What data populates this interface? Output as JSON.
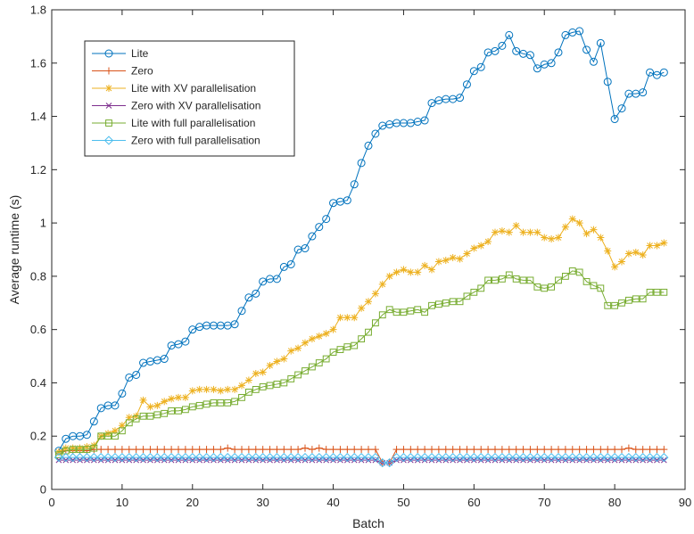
{
  "chart_data": {
    "type": "line",
    "xlabel": "Batch",
    "ylabel": "Average runtime (s)",
    "xlim": [
      0,
      90
    ],
    "ylim": [
      0,
      1.8
    ],
    "xticks": [
      0,
      10,
      20,
      30,
      40,
      50,
      60,
      70,
      80,
      90
    ],
    "yticks": [
      0,
      0.2,
      0.4,
      0.6,
      0.8,
      1,
      1.2,
      1.4,
      1.6,
      1.8
    ],
    "xtick_labels": [
      "0",
      "10",
      "20",
      "30",
      "40",
      "50",
      "60",
      "70",
      "80",
      "90"
    ],
    "ytick_labels": [
      "0",
      "0.2",
      "0.4",
      "0.6",
      "0.8",
      "1",
      "1.2",
      "1.4",
      "1.6",
      "1.8"
    ],
    "grid": false,
    "legend_position": "top-left",
    "x": [
      1,
      2,
      3,
      4,
      5,
      6,
      7,
      8,
      9,
      10,
      11,
      12,
      13,
      14,
      15,
      16,
      17,
      18,
      19,
      20,
      21,
      22,
      23,
      24,
      25,
      26,
      27,
      28,
      29,
      30,
      31,
      32,
      33,
      34,
      35,
      36,
      37,
      38,
      39,
      40,
      41,
      42,
      43,
      44,
      45,
      46,
      47,
      48,
      49,
      50,
      51,
      52,
      53,
      54,
      55,
      56,
      57,
      58,
      59,
      60,
      61,
      62,
      63,
      64,
      65,
      66,
      67,
      68,
      69,
      70,
      71,
      72,
      73,
      74,
      75,
      76,
      77,
      78,
      79,
      80,
      81,
      82,
      83,
      84,
      85,
      86,
      87
    ],
    "series": [
      {
        "name": "Lite",
        "color": "#0072BD",
        "marker": "circle",
        "values": [
          0.145,
          0.19,
          0.2,
          0.2,
          0.205,
          0.255,
          0.305,
          0.315,
          0.315,
          0.36,
          0.42,
          0.43,
          0.475,
          0.48,
          0.485,
          0.49,
          0.54,
          0.545,
          0.555,
          0.6,
          0.61,
          0.615,
          0.615,
          0.615,
          0.615,
          0.62,
          0.67,
          0.72,
          0.735,
          0.78,
          0.79,
          0.79,
          0.835,
          0.845,
          0.9,
          0.905,
          0.95,
          0.985,
          1.015,
          1.075,
          1.08,
          1.085,
          1.145,
          1.225,
          1.29,
          1.335,
          1.365,
          1.37,
          1.375,
          1.375,
          1.375,
          1.38,
          1.385,
          1.45,
          1.46,
          1.465,
          1.465,
          1.47,
          1.52,
          1.57,
          1.585,
          1.64,
          1.645,
          1.665,
          1.705,
          1.645,
          1.635,
          1.63,
          1.58,
          1.595,
          1.6,
          1.64,
          1.705,
          1.715,
          1.72,
          1.65,
          1.605,
          1.675,
          1.53,
          1.39,
          1.43,
          1.485,
          1.485,
          1.49,
          1.565,
          1.555,
          1.565
        ]
      },
      {
        "name": "Zero",
        "color": "#D95319",
        "marker": "plus",
        "values": [
          0.14,
          0.145,
          0.145,
          0.145,
          0.145,
          0.15,
          0.15,
          0.15,
          0.15,
          0.15,
          0.15,
          0.15,
          0.15,
          0.15,
          0.15,
          0.15,
          0.15,
          0.15,
          0.15,
          0.15,
          0.15,
          0.15,
          0.15,
          0.15,
          0.155,
          0.15,
          0.15,
          0.15,
          0.15,
          0.15,
          0.15,
          0.15,
          0.15,
          0.15,
          0.15,
          0.155,
          0.15,
          0.155,
          0.15,
          0.15,
          0.15,
          0.15,
          0.15,
          0.15,
          0.15,
          0.15,
          0.1,
          0.1,
          0.15,
          0.15,
          0.15,
          0.15,
          0.15,
          0.15,
          0.15,
          0.15,
          0.15,
          0.15,
          0.15,
          0.15,
          0.15,
          0.15,
          0.15,
          0.15,
          0.15,
          0.15,
          0.15,
          0.15,
          0.15,
          0.15,
          0.15,
          0.15,
          0.15,
          0.15,
          0.15,
          0.15,
          0.15,
          0.15,
          0.15,
          0.15,
          0.15,
          0.155,
          0.15,
          0.15,
          0.15,
          0.15,
          0.15
        ]
      },
      {
        "name": "Lite with XV parallelisation",
        "color": "#EDB120",
        "marker": "asterisk",
        "values": [
          0.14,
          0.155,
          0.155,
          0.155,
          0.16,
          0.165,
          0.2,
          0.21,
          0.22,
          0.24,
          0.27,
          0.275,
          0.335,
          0.31,
          0.315,
          0.33,
          0.34,
          0.345,
          0.345,
          0.37,
          0.375,
          0.375,
          0.375,
          0.37,
          0.375,
          0.375,
          0.39,
          0.41,
          0.435,
          0.44,
          0.465,
          0.48,
          0.49,
          0.52,
          0.53,
          0.55,
          0.565,
          0.575,
          0.585,
          0.6,
          0.645,
          0.645,
          0.645,
          0.68,
          0.705,
          0.735,
          0.77,
          0.8,
          0.815,
          0.825,
          0.815,
          0.815,
          0.84,
          0.825,
          0.855,
          0.86,
          0.87,
          0.865,
          0.885,
          0.905,
          0.915,
          0.93,
          0.965,
          0.97,
          0.965,
          0.99,
          0.965,
          0.965,
          0.965,
          0.945,
          0.94,
          0.945,
          0.985,
          1.015,
          1.0,
          0.96,
          0.975,
          0.945,
          0.895,
          0.835,
          0.855,
          0.885,
          0.89,
          0.88,
          0.915,
          0.915,
          0.925
        ]
      },
      {
        "name": "Zero with XV parallelisation",
        "color": "#7E2F8E",
        "marker": "x",
        "values": [
          0.11,
          0.11,
          0.11,
          0.11,
          0.11,
          0.11,
          0.11,
          0.11,
          0.11,
          0.11,
          0.11,
          0.11,
          0.11,
          0.11,
          0.11,
          0.11,
          0.11,
          0.11,
          0.11,
          0.11,
          0.11,
          0.11,
          0.11,
          0.11,
          0.11,
          0.11,
          0.11,
          0.11,
          0.11,
          0.11,
          0.11,
          0.11,
          0.11,
          0.11,
          0.11,
          0.11,
          0.11,
          0.11,
          0.11,
          0.11,
          0.11,
          0.11,
          0.11,
          0.11,
          0.11,
          0.11,
          0.1,
          0.1,
          0.11,
          0.11,
          0.11,
          0.11,
          0.11,
          0.11,
          0.11,
          0.11,
          0.11,
          0.11,
          0.11,
          0.11,
          0.11,
          0.11,
          0.11,
          0.11,
          0.11,
          0.11,
          0.11,
          0.11,
          0.11,
          0.11,
          0.11,
          0.11,
          0.11,
          0.11,
          0.11,
          0.11,
          0.11,
          0.11,
          0.11,
          0.11,
          0.11,
          0.11,
          0.11,
          0.11,
          0.11,
          0.11,
          0.11
        ]
      },
      {
        "name": "Lite with full parallelisation",
        "color": "#77AC30",
        "marker": "square",
        "values": [
          0.13,
          0.145,
          0.15,
          0.15,
          0.15,
          0.155,
          0.2,
          0.2,
          0.2,
          0.22,
          0.25,
          0.265,
          0.275,
          0.275,
          0.28,
          0.285,
          0.295,
          0.295,
          0.3,
          0.31,
          0.315,
          0.32,
          0.325,
          0.325,
          0.325,
          0.33,
          0.345,
          0.365,
          0.375,
          0.385,
          0.39,
          0.395,
          0.4,
          0.415,
          0.43,
          0.445,
          0.46,
          0.475,
          0.49,
          0.515,
          0.525,
          0.535,
          0.54,
          0.565,
          0.59,
          0.625,
          0.655,
          0.675,
          0.665,
          0.665,
          0.67,
          0.675,
          0.665,
          0.69,
          0.695,
          0.7,
          0.705,
          0.705,
          0.725,
          0.74,
          0.755,
          0.785,
          0.785,
          0.79,
          0.805,
          0.79,
          0.785,
          0.785,
          0.76,
          0.755,
          0.76,
          0.785,
          0.8,
          0.82,
          0.815,
          0.78,
          0.765,
          0.755,
          0.69,
          0.69,
          0.7,
          0.71,
          0.715,
          0.715,
          0.74,
          0.74,
          0.74
        ]
      },
      {
        "name": "Zero with full parallelisation",
        "color": "#4DBEEE",
        "marker": "diamond",
        "values": [
          0.12,
          0.12,
          0.12,
          0.12,
          0.12,
          0.12,
          0.12,
          0.12,
          0.12,
          0.12,
          0.12,
          0.12,
          0.12,
          0.12,
          0.12,
          0.12,
          0.12,
          0.12,
          0.12,
          0.12,
          0.12,
          0.12,
          0.12,
          0.12,
          0.12,
          0.12,
          0.12,
          0.12,
          0.12,
          0.12,
          0.12,
          0.12,
          0.12,
          0.12,
          0.12,
          0.12,
          0.12,
          0.12,
          0.12,
          0.12,
          0.12,
          0.12,
          0.12,
          0.12,
          0.12,
          0.12,
          0.1,
          0.1,
          0.12,
          0.12,
          0.12,
          0.12,
          0.12,
          0.12,
          0.12,
          0.12,
          0.12,
          0.12,
          0.12,
          0.12,
          0.12,
          0.12,
          0.12,
          0.12,
          0.12,
          0.12,
          0.12,
          0.12,
          0.12,
          0.12,
          0.12,
          0.12,
          0.12,
          0.12,
          0.12,
          0.12,
          0.12,
          0.12,
          0.12,
          0.12,
          0.12,
          0.12,
          0.12,
          0.12,
          0.12,
          0.12,
          0.12
        ]
      }
    ]
  }
}
